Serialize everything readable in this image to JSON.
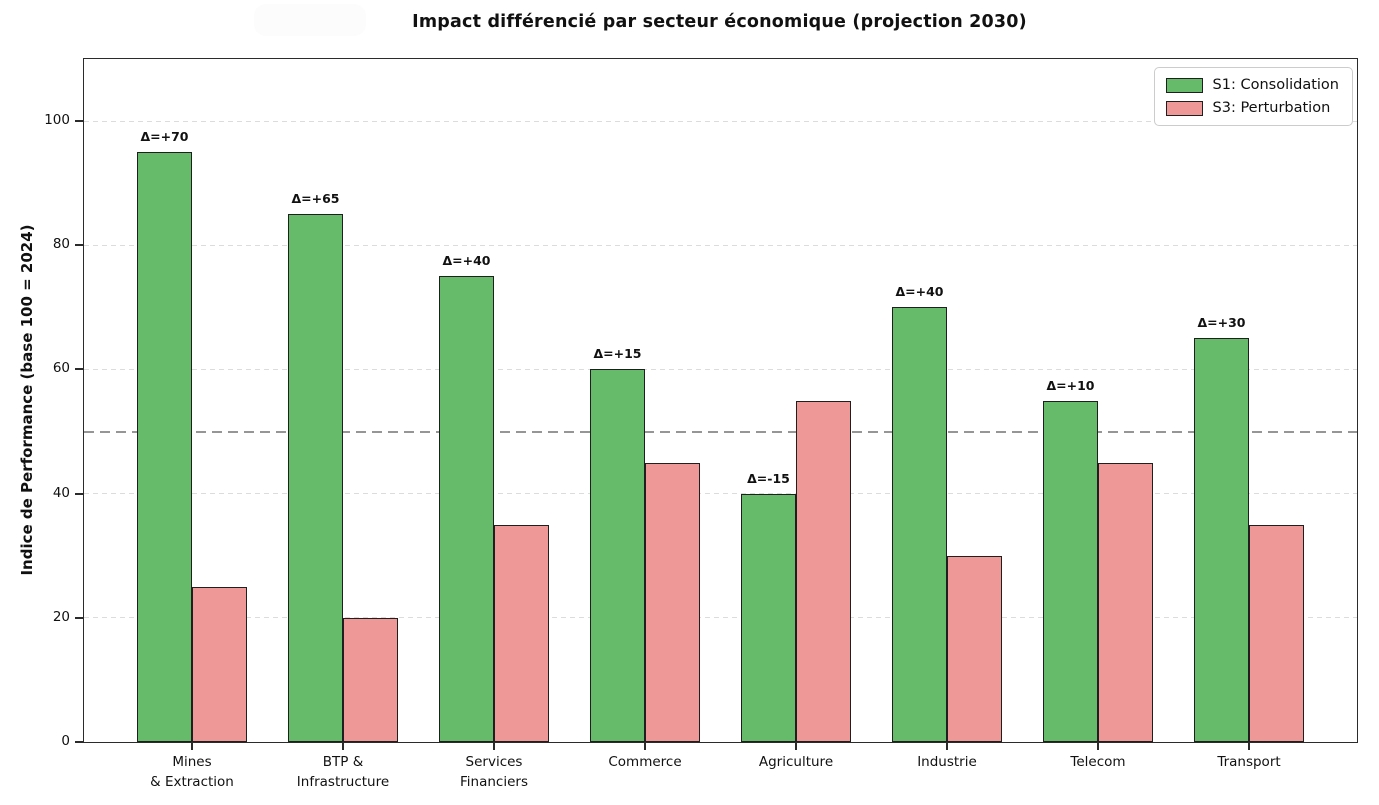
{
  "chart_data": {
    "type": "bar",
    "title": "Impact différencié par secteur économique (projection 2030)",
    "ylabel": "Indice de Performance (base 100 = 2024)",
    "xlabel": "",
    "categories": [
      "Mines\n& Extraction",
      "BTP &\nInfrastructure",
      "Services\nFinanciers",
      "Commerce",
      "Agriculture",
      "Industrie",
      "Telecom",
      "Transport"
    ],
    "series": [
      {
        "name": "S1: Consolidation",
        "color": "#66bb6a",
        "edge_color": "#1f1f1f",
        "values": [
          95,
          85,
          75,
          60,
          40,
          70,
          55,
          65
        ]
      },
      {
        "name": "S3: Perturbation",
        "color": "#ee9898",
        "edge_color": "#1f1f1f",
        "values": [
          25,
          20,
          35,
          45,
          55,
          30,
          45,
          35
        ]
      }
    ],
    "delta_labels": [
      "Δ=+70",
      "Δ=+65",
      "Δ=+40",
      "Δ=+15",
      "Δ=-15",
      "Δ=+40",
      "Δ=+10",
      "Δ=+30"
    ],
    "yticks": [
      0,
      20,
      40,
      60,
      80,
      100
    ],
    "ylim": [
      0,
      110
    ],
    "reference_line": {
      "y": 50,
      "color": "#969696",
      "style": "dashed"
    },
    "grid": {
      "axis": "y",
      "style": "dashed",
      "color": "#dcdcdc"
    },
    "legend": {
      "position": "upper right",
      "entries": [
        "S1: Consolidation",
        "S3: Perturbation"
      ]
    }
  }
}
